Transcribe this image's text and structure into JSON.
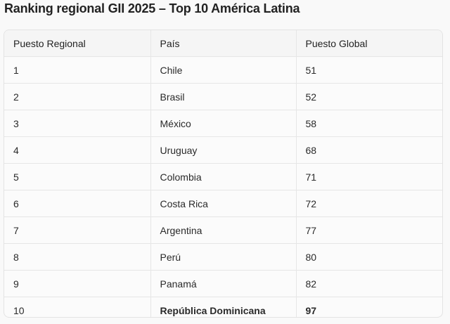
{
  "title": "Ranking regional GII 2025 – Top 10 América Latina",
  "table": {
    "headers": [
      "Puesto Regional",
      "País",
      "Puesto Global"
    ],
    "rows": [
      [
        "1",
        "Chile",
        "51"
      ],
      [
        "2",
        "Brasil",
        "52"
      ],
      [
        "3",
        "México",
        "58"
      ],
      [
        "4",
        "Uruguay",
        "68"
      ],
      [
        "5",
        "Colombia",
        "71"
      ],
      [
        "6",
        "Costa Rica",
        "72"
      ],
      [
        "7",
        "Argentina",
        "77"
      ],
      [
        "8",
        "Perú",
        "80"
      ],
      [
        "9",
        "Panamá",
        "82"
      ],
      [
        "10",
        "República Dominicana",
        "97"
      ]
    ],
    "highlighted_row_index": 9
  }
}
